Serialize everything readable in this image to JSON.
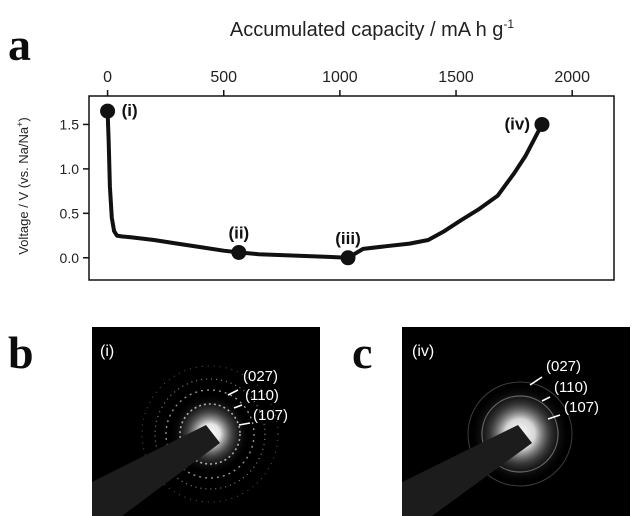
{
  "figure": {
    "panel_labels": [
      "a",
      "b",
      "c"
    ]
  },
  "chart_data": {
    "type": "line",
    "title": "",
    "xlabel": "Accumulated capacity / mA h g",
    "xlabel_superscript": "-1",
    "ylabel": "Voltage / V (vs. Na/Na",
    "ylabel_superscript": "+",
    "ylabel_close": ")",
    "x_axis_position": "top",
    "xlim": [
      -80,
      2180
    ],
    "ylim": [
      -0.25,
      1.82
    ],
    "x_ticks": [
      0,
      500,
      1000,
      1500,
      2000
    ],
    "y_ticks": [
      0.0,
      0.5,
      1.0,
      1.5
    ],
    "y_tick_labels": [
      "0.0",
      "0.5",
      "1.0",
      "1.5"
    ],
    "grid": false,
    "series": [
      {
        "x": [
          0,
          5,
          10,
          18,
          28,
          40,
          60,
          100,
          200,
          300,
          400,
          500,
          565,
          650,
          750,
          850,
          950,
          1035,
          1100,
          1200,
          1300,
          1380,
          1450,
          1520,
          1600,
          1680,
          1750,
          1800,
          1840,
          1870
        ],
        "y": [
          1.65,
          1.3,
          0.8,
          0.45,
          0.3,
          0.25,
          0.24,
          0.23,
          0.2,
          0.16,
          0.12,
          0.08,
          0.06,
          0.04,
          0.03,
          0.02,
          0.01,
          0.0,
          0.1,
          0.13,
          0.16,
          0.2,
          0.3,
          0.42,
          0.55,
          0.7,
          0.95,
          1.15,
          1.35,
          1.5
        ]
      }
    ],
    "markers": [
      {
        "label": "(i)",
        "x": 0,
        "y": 1.65
      },
      {
        "label": "(ii)",
        "x": 565,
        "y": 0.06
      },
      {
        "label": "(iii)",
        "x": 1035,
        "y": 0.0
      },
      {
        "label": "(iv)",
        "x": 1870,
        "y": 1.5
      }
    ]
  },
  "diffraction_b": {
    "state": "(i)",
    "rings": [
      "(027)",
      "(110)",
      "(107)"
    ]
  },
  "diffraction_c": {
    "state": "(iv)",
    "rings": [
      "(027)",
      "(110)",
      "(107)"
    ]
  }
}
